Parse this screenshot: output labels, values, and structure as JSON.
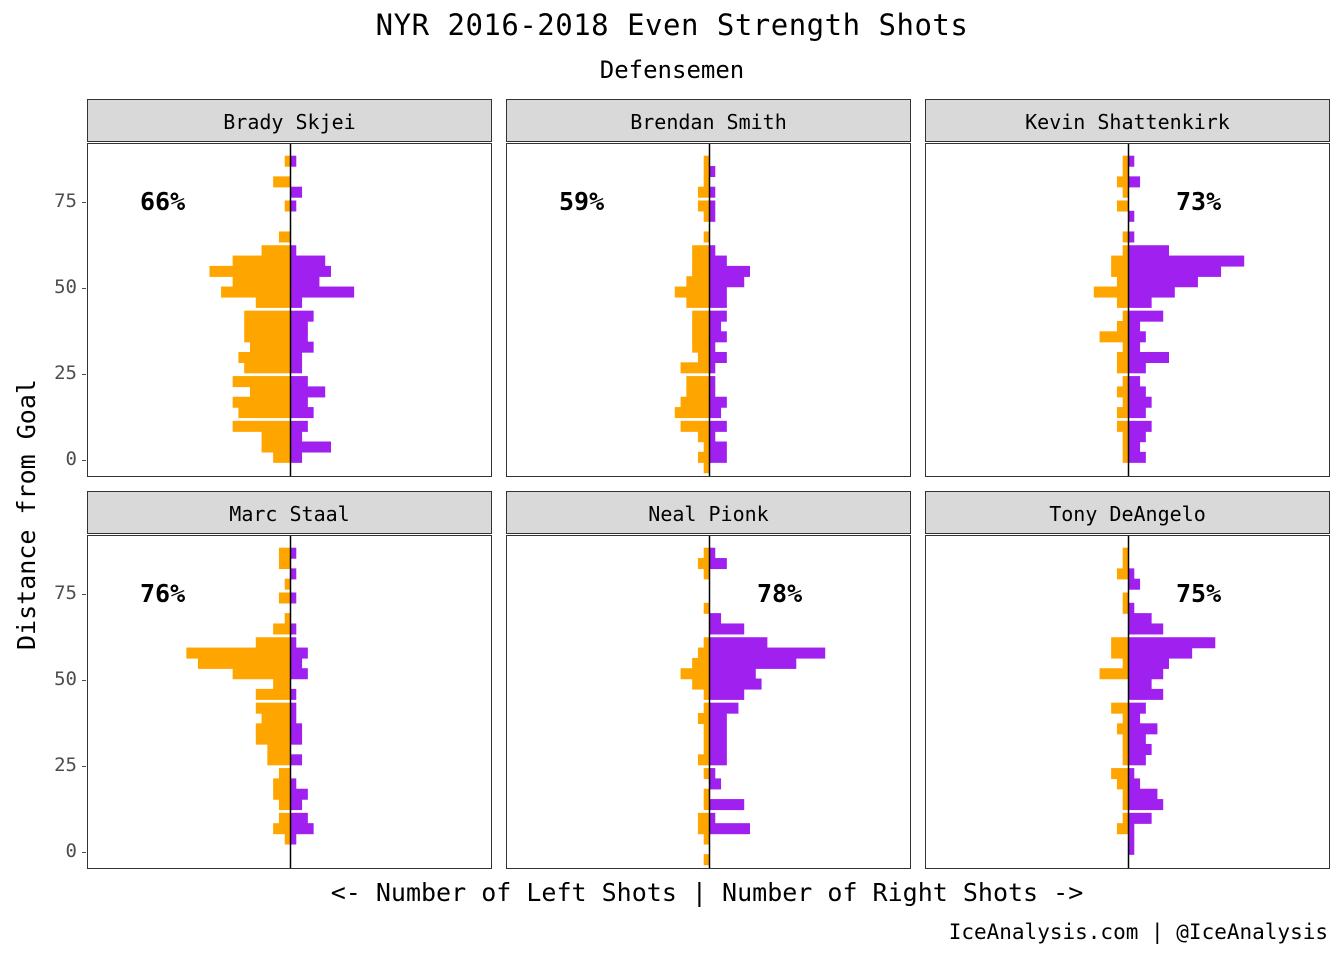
{
  "chart_data": {
    "type": "bar",
    "orientation": "horizontal-diverging",
    "title": "NYR 2016-2018 Even Strength Shots",
    "subtitle": "Defensemen",
    "ylabel": "Distance from Goal",
    "xlabel": "<- Number of Left Shots | Number of Right Shots ->",
    "caption": "IceAnalysis.com | @IceAnalysis",
    "y_ticks": [
      "0",
      "25",
      "50",
      "75"
    ],
    "y_tick_values": [
      0,
      25,
      50,
      75
    ],
    "ylim": [
      -5,
      92
    ],
    "xlim": [
      -35,
      35
    ],
    "bin_width": 3.2,
    "colors": {
      "left": "#FFA500",
      "right": "#A020F0"
    },
    "panels": [
      {
        "player": "Brady Skjei",
        "percent": "66%",
        "bins": [
          -2,
          1,
          4,
          7,
          10,
          14,
          17,
          20,
          23,
          27,
          30,
          33,
          36,
          39,
          42,
          46,
          49,
          52,
          55,
          58,
          61,
          65,
          68,
          71,
          74,
          78,
          81,
          84,
          87
        ],
        "left": [
          0,
          3,
          5,
          5,
          10,
          9,
          10,
          7,
          10,
          8,
          9,
          7,
          8,
          8,
          8,
          6,
          12,
          10,
          14,
          10,
          5,
          2,
          0,
          0,
          1,
          0,
          3,
          0,
          1
        ],
        "right": [
          0,
          2,
          7,
          2,
          3,
          4,
          3,
          6,
          3,
          2,
          2,
          4,
          3,
          3,
          4,
          2,
          11,
          5,
          7,
          6,
          1,
          0,
          0,
          0,
          1,
          2,
          0,
          0,
          1
        ]
      },
      {
        "player": "Brendan Smith",
        "percent": "59%",
        "bins": [
          -2,
          1,
          4,
          7,
          10,
          14,
          17,
          20,
          23,
          27,
          30,
          33,
          36,
          39,
          42,
          46,
          49,
          52,
          55,
          58,
          61,
          65,
          68,
          71,
          74,
          78,
          81,
          84,
          87
        ],
        "left": [
          1,
          2,
          1,
          2,
          5,
          6,
          5,
          4,
          4,
          5,
          2,
          3,
          3,
          3,
          3,
          4,
          6,
          4,
          3,
          3,
          3,
          1,
          0,
          1,
          2,
          2,
          1,
          1,
          1
        ],
        "right": [
          0,
          3,
          3,
          1,
          3,
          2,
          3,
          1,
          1,
          1,
          3,
          1,
          3,
          2,
          3,
          3,
          3,
          6,
          7,
          3,
          1,
          0,
          0,
          1,
          1,
          1,
          0,
          1,
          0
        ]
      },
      {
        "player": "Kevin Shattenkirk",
        "percent": "73%",
        "bins": [
          -2,
          1,
          4,
          7,
          10,
          14,
          17,
          20,
          23,
          27,
          30,
          33,
          36,
          39,
          42,
          46,
          49,
          52,
          55,
          58,
          61,
          65,
          68,
          71,
          74,
          78,
          81,
          84,
          87
        ],
        "left": [
          0,
          1,
          1,
          1,
          2,
          2,
          1,
          2,
          1,
          2,
          2,
          1,
          5,
          2,
          1,
          2,
          6,
          2,
          3,
          3,
          1,
          1,
          0,
          0,
          2,
          1,
          2,
          1,
          1
        ],
        "right": [
          0,
          3,
          2,
          3,
          4,
          3,
          4,
          3,
          2,
          3,
          7,
          2,
          3,
          2,
          6,
          4,
          8,
          12,
          16,
          20,
          7,
          1,
          0,
          1,
          0,
          0,
          2,
          0,
          1
        ]
      },
      {
        "player": "Marc Staal",
        "percent": "76%",
        "bins": [
          -2,
          1,
          4,
          7,
          10,
          14,
          17,
          20,
          23,
          27,
          30,
          33,
          36,
          39,
          42,
          46,
          49,
          52,
          55,
          58,
          61,
          65,
          68,
          71,
          74,
          78,
          81,
          84,
          87
        ],
        "left": [
          0,
          0,
          1,
          3,
          2,
          2,
          3,
          3,
          2,
          4,
          4,
          6,
          6,
          5,
          6,
          6,
          3,
          10,
          16,
          18,
          6,
          3,
          1,
          0,
          2,
          1,
          0,
          2,
          2
        ],
        "right": [
          0,
          0,
          1,
          4,
          3,
          2,
          3,
          1,
          0,
          2,
          0,
          2,
          2,
          1,
          1,
          1,
          0,
          3,
          2,
          3,
          1,
          1,
          0,
          0,
          1,
          0,
          1,
          0,
          1
        ]
      },
      {
        "player": "Neal Pionk",
        "percent": "78%",
        "bins": [
          -2,
          1,
          4,
          7,
          10,
          14,
          17,
          20,
          23,
          27,
          30,
          33,
          36,
          39,
          42,
          46,
          49,
          52,
          55,
          58,
          61,
          65,
          68,
          71,
          74,
          78,
          81,
          84,
          87
        ],
        "left": [
          1,
          0,
          1,
          2,
          2,
          1,
          1,
          0,
          1,
          2,
          1,
          1,
          1,
          2,
          1,
          1,
          3,
          5,
          3,
          2,
          1,
          0,
          0,
          1,
          0,
          0,
          1,
          2,
          1
        ],
        "right": [
          0,
          0,
          0,
          7,
          1,
          6,
          0,
          2,
          1,
          3,
          3,
          3,
          3,
          3,
          5,
          6,
          9,
          8,
          15,
          20,
          10,
          6,
          2,
          0,
          0,
          0,
          0,
          3,
          1
        ]
      },
      {
        "player": "Tony DeAngelo",
        "percent": "75%",
        "bins": [
          -2,
          1,
          4,
          7,
          10,
          14,
          17,
          20,
          23,
          27,
          30,
          33,
          36,
          39,
          42,
          46,
          49,
          52,
          55,
          58,
          61,
          65,
          68,
          71,
          74,
          78,
          81,
          84,
          87
        ],
        "left": [
          0,
          0,
          0,
          2,
          1,
          1,
          1,
          2,
          3,
          1,
          1,
          1,
          2,
          1,
          3,
          0,
          0,
          5,
          1,
          3,
          3,
          0,
          0,
          1,
          1,
          0,
          2,
          1,
          1
        ],
        "right": [
          0,
          1,
          1,
          1,
          4,
          6,
          5,
          2,
          1,
          3,
          4,
          3,
          5,
          2,
          3,
          6,
          4,
          6,
          7,
          11,
          15,
          6,
          4,
          1,
          0,
          2,
          1,
          0,
          0
        ]
      }
    ]
  }
}
